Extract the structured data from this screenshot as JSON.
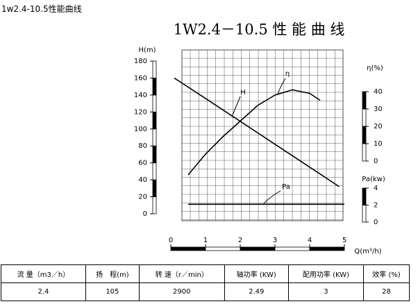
{
  "header": {
    "title": "1w2.4-10.5性能曲线"
  },
  "chart_data": {
    "type": "line",
    "title": "1W2.4－10.5 性 能 曲 线",
    "x_label": "Q(m³/h)",
    "y_label": "H(m)",
    "y2_label": "η(%)",
    "y3_label": "Pa(kw)",
    "xlim": [
      0,
      5
    ],
    "xticks": [
      0,
      1,
      2,
      3,
      4,
      5
    ],
    "ylim": [
      0,
      180
    ],
    "yticks": [
      0,
      20,
      40,
      60,
      80,
      100,
      120,
      140,
      160,
      180
    ],
    "y2lim": [
      0,
      40
    ],
    "y2ticks": [
      0,
      10,
      20,
      30,
      40
    ],
    "y3lim": [
      0,
      4
    ],
    "y3ticks": [
      0,
      2,
      4
    ],
    "grid": true,
    "series": [
      {
        "name": "H",
        "color": "#000000",
        "x": [
          0.1,
          1,
          2,
          3,
          4,
          4.85
        ],
        "values": [
          160,
          136,
          109,
          82,
          55,
          32
        ]
      },
      {
        "name": "η",
        "color": "#000000",
        "axis": "y2",
        "x": [
          0.5,
          1,
          1.5,
          2,
          2.5,
          3,
          3.5,
          4,
          4.3
        ],
        "values": [
          -8,
          4,
          14,
          23,
          32,
          38,
          41,
          39,
          35
        ]
      },
      {
        "name": "Pa",
        "color": "#000000",
        "axis": "y3",
        "x": [
          0.5,
          5
        ],
        "values": [
          2.1,
          2.1
        ]
      }
    ]
  },
  "table": {
    "header": [
      "流 量（m3／h）",
      "扬　程(m)",
      "转 速（r／min）",
      "轴功率 (KW)",
      "配用功率 (KW)",
      "效率 (%)"
    ],
    "rows": [
      [
        "2.4",
        "105",
        "2900",
        "2.49",
        "3",
        "28"
      ]
    ]
  }
}
